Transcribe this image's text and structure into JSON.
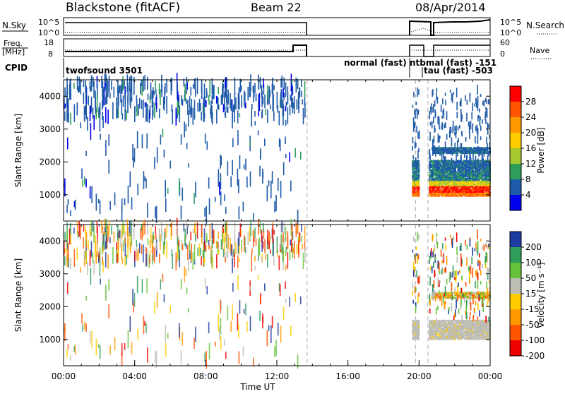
{
  "header": {
    "title": "Blackstone (fitACF)",
    "beam": "Beam 22",
    "date": "08/Apr/2014"
  },
  "panels": {
    "nsky_label": "N.Sky",
    "nsearch_label": "N.Search",
    "nsky_ticks": [
      "10^5",
      "10^0"
    ],
    "nsearch_ticks": [
      "10^5",
      "10^0"
    ],
    "freq_label_1": "Freq.",
    "freq_label_2": "[MHz]",
    "freq_ticks": [
      "18",
      "8"
    ],
    "nave_label": "Nave",
    "nave_ticks": [
      "60",
      "0"
    ],
    "cpid_label": "CPID"
  },
  "cpid_modes": [
    {
      "label": "twofsound 3501"
    },
    {
      "label": "normal (fast)"
    },
    {
      "label": "ntbmal (fast) -151"
    },
    {
      "label": "tau (fast) -503"
    }
  ],
  "power_colorbar": {
    "title": "Power [dB]",
    "ticks": [
      "28",
      "24",
      "20",
      "16",
      "12",
      "8",
      "4"
    ],
    "colors": [
      "#ff0000",
      "#ff5500",
      "#ff9900",
      "#ffcc00",
      "#a8c832",
      "#2e9e5a",
      "#1e5aa8",
      "#0000ee"
    ]
  },
  "velocity_colorbar": {
    "title": "Velocity [m s⁻¹]",
    "ticks": [
      "200",
      "100",
      "50",
      "15",
      "-15",
      "-50",
      "-100",
      "-200"
    ],
    "colors": [
      "#1e3ca0",
      "#2e9e5a",
      "#66c23a",
      "#bdbdb5",
      "#ffcc00",
      "#ff9900",
      "#ff5500",
      "#ee0000"
    ]
  },
  "chart_data": [
    {
      "type": "heatmap",
      "panel": "power",
      "title": "",
      "xlabel": "",
      "ylabel": "Slant Range [km]",
      "yticks": [
        "1000",
        "2000",
        "3000",
        "4000"
      ],
      "ylim": [
        200,
        4500
      ],
      "xlim": [
        0,
        24
      ],
      "gaps_hours": [
        13.7,
        19.8,
        20.5
      ],
      "bands": [
        {
          "x_range": [
            19.6,
            24
          ],
          "y_range": [
            1000,
            1300
          ],
          "value_db": 28
        },
        {
          "x_range": [
            19.6,
            24
          ],
          "y_range": [
            1300,
            1600
          ],
          "value_db": 12
        },
        {
          "x_range": [
            20.7,
            24
          ],
          "y_range": [
            2250,
            2450
          ],
          "value_db": 6
        }
      ]
    },
    {
      "type": "heatmap",
      "panel": "velocity",
      "title": "",
      "xlabel": "Time UT",
      "ylabel": "Slant Range [km]",
      "xticks": [
        "00:00",
        "04:00",
        "08:00",
        "12:00",
        "16:00",
        "20:00",
        "00:00"
      ],
      "yticks": [
        "1000",
        "2000",
        "3000",
        "4000"
      ],
      "ylim": [
        200,
        4500
      ],
      "xlim": [
        0,
        24
      ],
      "bands": [
        {
          "x_range": [
            19.6,
            24
          ],
          "y_range": [
            1000,
            1600
          ],
          "value_ms": 0
        },
        {
          "x_range": [
            20.7,
            24
          ],
          "y_range": [
            2250,
            2450
          ],
          "value_ms": -30
        }
      ]
    }
  ]
}
